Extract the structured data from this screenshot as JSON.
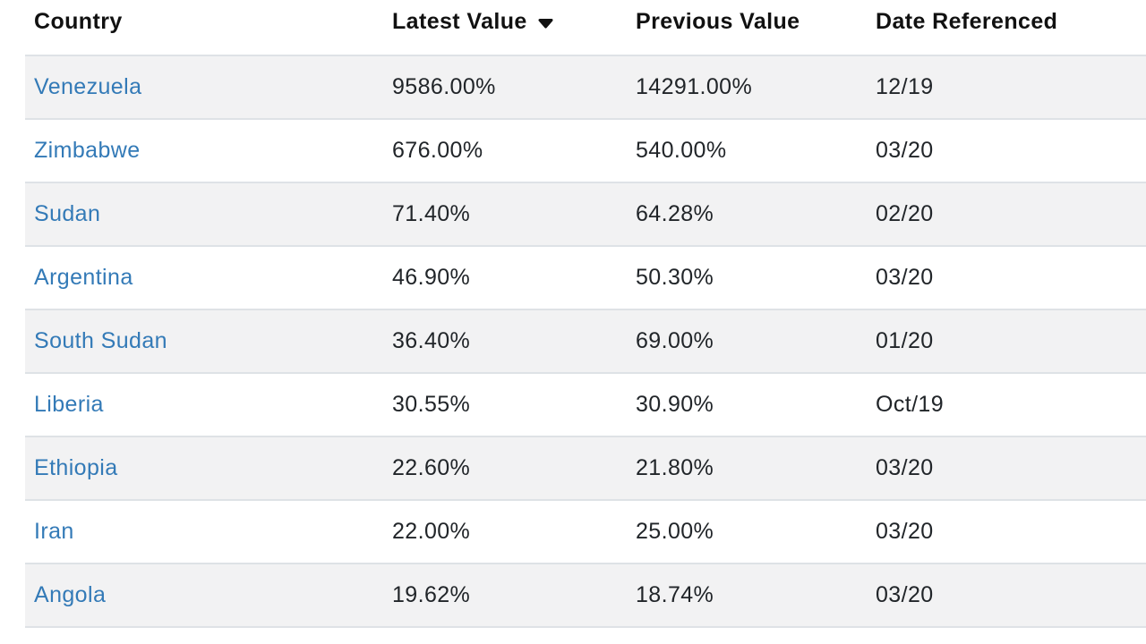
{
  "table": {
    "columns": [
      {
        "label": "Country",
        "sorted_desc": false
      },
      {
        "label": "Latest Value",
        "sorted_desc": true
      },
      {
        "label": "Previous Value",
        "sorted_desc": false
      },
      {
        "label": "Date Referenced",
        "sorted_desc": false
      }
    ],
    "rows": [
      {
        "country": "Venezuela",
        "latest": "9586.00%",
        "previous": "14291.00%",
        "date": "12/19"
      },
      {
        "country": "Zimbabwe",
        "latest": "676.00%",
        "previous": "540.00%",
        "date": "03/20"
      },
      {
        "country": "Sudan",
        "latest": "71.40%",
        "previous": "64.28%",
        "date": "02/20"
      },
      {
        "country": "Argentina",
        "latest": "46.90%",
        "previous": "50.30%",
        "date": "03/20"
      },
      {
        "country": "South Sudan",
        "latest": "36.40%",
        "previous": "69.00%",
        "date": "01/20"
      },
      {
        "country": "Liberia",
        "latest": "30.55%",
        "previous": "30.90%",
        "date": "Oct/19"
      },
      {
        "country": "Ethiopia",
        "latest": "22.60%",
        "previous": "21.80%",
        "date": "03/20"
      },
      {
        "country": "Iran",
        "latest": "22.00%",
        "previous": "25.00%",
        "date": "03/20"
      },
      {
        "country": "Angola",
        "latest": "19.62%",
        "previous": "18.74%",
        "date": "03/20"
      }
    ]
  },
  "icons": {
    "sort_desc": "descending-triangle"
  },
  "colors": {
    "link": "#337ab7",
    "header_text": "#111111",
    "cell_text": "#212529",
    "stripe": "#f2f2f3",
    "border": "#dee2e6",
    "background": "#ffffff"
  }
}
